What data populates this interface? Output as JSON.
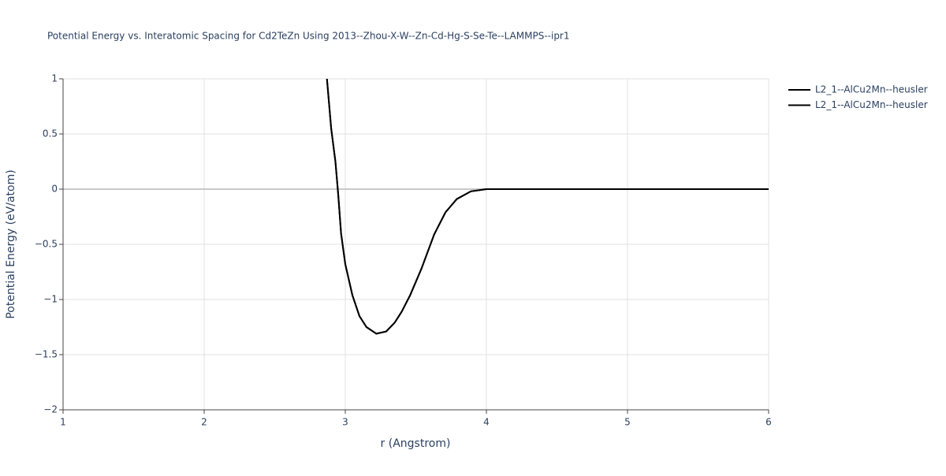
{
  "chart_data": {
    "type": "line",
    "title": "Potential Energy vs. Interatomic Spacing for Cd2TeZn Using 2013--Zhou-X-W--Zn-Cd-Hg-S-Se-Te--LAMMPS--ipr1",
    "x_label": "r (Angstrom)",
    "y_label": "Potential Energy (eV/atom)",
    "x": [
      2.87,
      2.9,
      2.93,
      2.95,
      2.97,
      3.0,
      3.05,
      3.1,
      3.15,
      3.22,
      3.29,
      3.35,
      3.4,
      3.46,
      3.54,
      3.63,
      3.71,
      3.79,
      3.89,
      4.0,
      4.5,
      5,
      5.5,
      6
    ],
    "series": [
      {
        "name": "L2_1--AlCu2Mn--heusler",
        "color": "#000000",
        "values": [
          1.0,
          0.55,
          0.25,
          -0.05,
          -0.4,
          -0.68,
          -0.96,
          -1.15,
          -1.25,
          -1.31,
          -1.29,
          -1.21,
          -1.11,
          -0.96,
          -0.72,
          -0.41,
          -0.21,
          -0.09,
          -0.02,
          0,
          0,
          0,
          0,
          0
        ]
      },
      {
        "name": "L2_1--AlCu2Mn--heusler",
        "color": "#000000",
        "values": [
          1.0,
          0.55,
          0.25,
          -0.05,
          -0.4,
          -0.68,
          -0.96,
          -1.15,
          -1.25,
          -1.31,
          -1.29,
          -1.21,
          -1.11,
          -0.96,
          -0.72,
          -0.41,
          -0.21,
          -0.09,
          -0.02,
          0,
          0,
          0,
          0,
          0
        ]
      }
    ],
    "xlim": [
      1,
      6
    ],
    "xticks": [
      1,
      2,
      3,
      4,
      5,
      6
    ],
    "ylim": [
      -2,
      1
    ],
    "yticks": [
      {
        "value": -2,
        "label": "−2"
      },
      {
        "value": -1.5,
        "label": "−1.5"
      },
      {
        "value": -1,
        "label": "−1"
      },
      {
        "value": -0.5,
        "label": "−0.5"
      },
      0,
      0.5,
      1
    ],
    "grid": true,
    "legend": "right"
  }
}
